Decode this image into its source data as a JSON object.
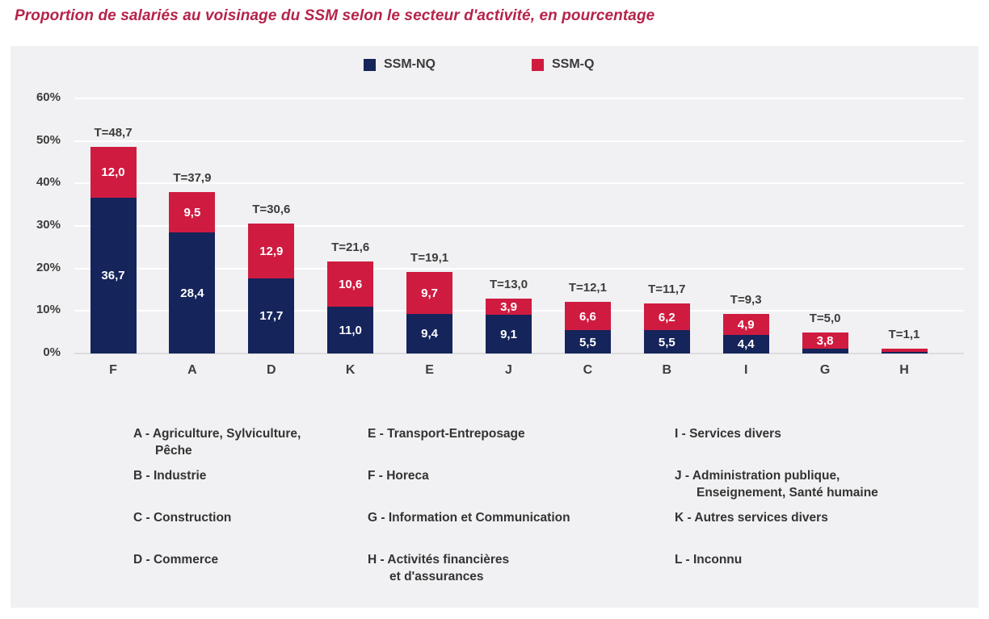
{
  "page": {
    "title": "Proportion de salariés au voisinage du SSM selon le secteur d'activité, en pourcentage"
  },
  "colors": {
    "ssm_nq": "#15245a",
    "ssm_q": "#d01b40",
    "title_red": "#b5234a",
    "panel_bg": "#f1f1f3",
    "gridline": "#ffffff",
    "axis_text": "#3d3d3d"
  },
  "legend": {
    "items": [
      {
        "label": "SSM-NQ",
        "color": "#15245a"
      },
      {
        "label": "SSM-Q",
        "color": "#d01b40"
      }
    ]
  },
  "chart_data": {
    "type": "bar",
    "subtype": "stacked",
    "title": "Proportion de salariés au voisinage du SSM selon le secteur d'activité, en pourcentage",
    "categories": [
      "F",
      "A",
      "D",
      "K",
      "E",
      "J",
      "C",
      "B",
      "I",
      "G",
      "H"
    ],
    "series": [
      {
        "name": "SSM-NQ",
        "values": [
          36.7,
          28.4,
          17.7,
          11.0,
          9.4,
          9.1,
          5.5,
          5.5,
          4.4,
          1.2,
          0.3
        ],
        "labels": [
          "36,7",
          "28,4",
          "17,7",
          "11,0",
          "9,4",
          "9,1",
          "5,5",
          "5,5",
          "4,4",
          "",
          ""
        ]
      },
      {
        "name": "SSM-Q",
        "values": [
          12.0,
          9.5,
          12.9,
          10.6,
          9.7,
          3.9,
          6.6,
          6.2,
          4.9,
          3.8,
          0.8
        ],
        "labels": [
          "12,0",
          "9,5",
          "12,9",
          "10,6",
          "9,7",
          "3,9",
          "6,6",
          "6,2",
          "4,9",
          "3,8",
          ""
        ]
      }
    ],
    "totals": [
      "T=48,7",
      "T=37,9",
      "T=30,6",
      "T=21,6",
      "T=19,1",
      "T=13,0",
      "T=12,1",
      "T=11,7",
      "T=9,3",
      "T=5,0",
      "T=1,1"
    ],
    "y_ticks": [
      "0%",
      "10%",
      "20%",
      "30%",
      "40%",
      "50%",
      "60%"
    ],
    "ylim": [
      0,
      60
    ],
    "grid": true,
    "legend_position": "top-center"
  },
  "sectors": {
    "col1": [
      "A - Agriculture, Sylviculture,\nPêche",
      "B - Industrie",
      "C - Construction",
      "D - Commerce"
    ],
    "col2": [
      "E - Transport-Entreposage",
      "F - Horeca",
      "G - Information et Communication",
      "H - Activités financières\net d'assurances"
    ],
    "col3": [
      "I - Services divers",
      "J - Administration publique,\nEnseignement, Santé humaine",
      "K - Autres services divers",
      "L - Inconnu"
    ]
  }
}
